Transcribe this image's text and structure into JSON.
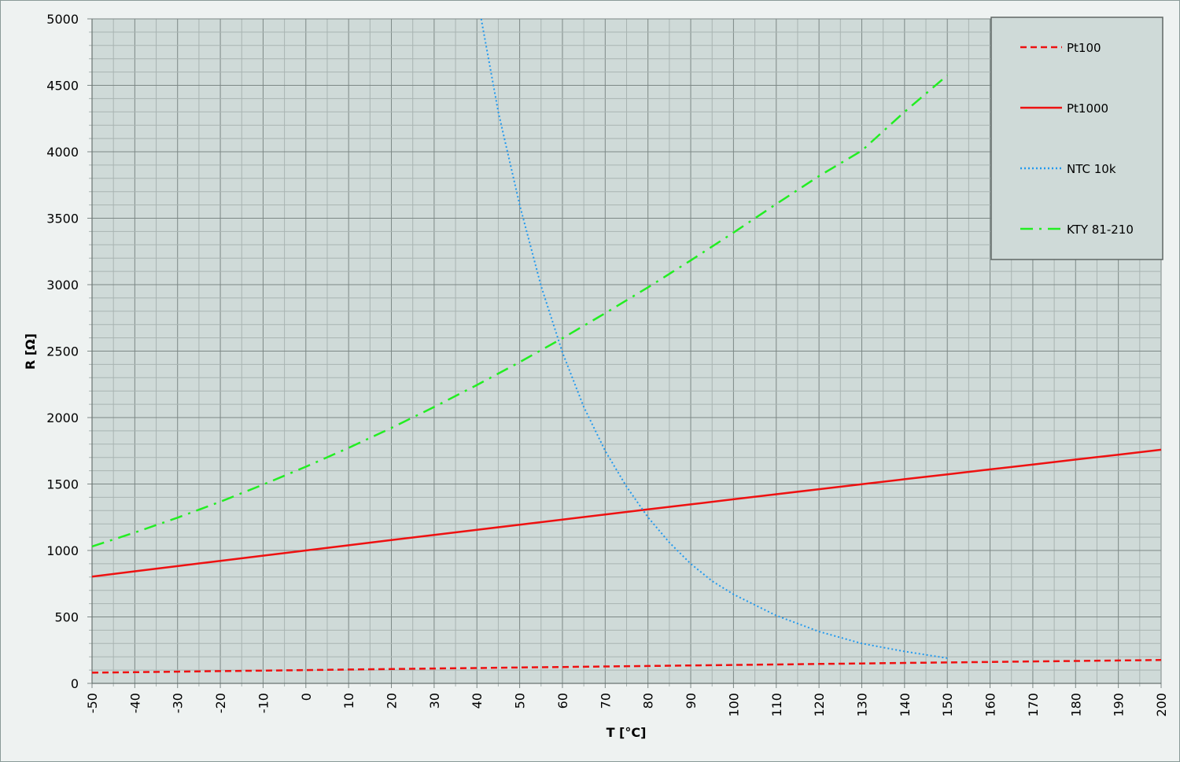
{
  "chart_data": {
    "type": "line",
    "title": "",
    "xlabel": "T [°C]",
    "ylabel": "R [Ω]",
    "xlim": [
      -50,
      200
    ],
    "ylim": [
      0,
      5000
    ],
    "xticks": [
      -50,
      -40,
      -30,
      -20,
      -10,
      0,
      10,
      20,
      30,
      40,
      50,
      60,
      70,
      80,
      90,
      100,
      110,
      120,
      130,
      140,
      150,
      160,
      170,
      180,
      190,
      200
    ],
    "yticks": [
      0,
      500,
      1000,
      1500,
      2000,
      2500,
      3000,
      3500,
      4000,
      4500,
      5000
    ],
    "grid": true,
    "legend_position": "top-right",
    "series": [
      {
        "name": "Pt100",
        "color": "#ee1111",
        "style": "dashed",
        "x": [
          -50,
          -40,
          -30,
          -20,
          -10,
          0,
          10,
          20,
          30,
          40,
          50,
          60,
          70,
          80,
          90,
          100,
          110,
          120,
          130,
          140,
          150,
          160,
          170,
          180,
          190,
          200
        ],
        "y": [
          80.3,
          84.3,
          88.2,
          92.2,
          96.1,
          100,
          103.9,
          107.8,
          111.7,
          115.5,
          119.4,
          123.2,
          127.1,
          130.9,
          134.7,
          138.5,
          142.3,
          146.1,
          149.8,
          153.6,
          157.3,
          161.0,
          164.8,
          168.5,
          172.2,
          175.8
        ]
      },
      {
        "name": "Pt1000",
        "color": "#ee1111",
        "style": "solid",
        "x": [
          -50,
          -40,
          -30,
          -20,
          -10,
          0,
          10,
          20,
          30,
          40,
          50,
          60,
          70,
          80,
          90,
          100,
          110,
          120,
          130,
          140,
          150,
          160,
          170,
          180,
          190,
          200
        ],
        "y": [
          803,
          843,
          882,
          922,
          961,
          1000,
          1039,
          1078,
          1117,
          1155,
          1194,
          1232,
          1271,
          1309,
          1347,
          1385,
          1423,
          1461,
          1498,
          1536,
          1573,
          1610,
          1647,
          1684,
          1721,
          1758
        ]
      },
      {
        "name": "NTC 10k",
        "color": "#2299ee",
        "style": "dotted",
        "x": [
          41,
          45,
          50,
          55,
          60,
          65,
          70,
          75,
          80,
          85,
          90,
          95,
          100,
          110,
          120,
          130,
          140,
          150
        ],
        "y": [
          5000,
          4300,
          3600,
          2990,
          2490,
          2080,
          1750,
          1480,
          1250,
          1060,
          900,
          770,
          670,
          510,
          390,
          300,
          240,
          190
        ]
      },
      {
        "name": "KTY 81-210",
        "color": "#22ee22",
        "style": "dashdot",
        "x": [
          -50,
          -40,
          -30,
          -20,
          -10,
          0,
          10,
          20,
          30,
          40,
          50,
          60,
          70,
          80,
          90,
          100,
          110,
          120,
          130,
          140,
          150
        ],
        "y": [
          1030,
          1135,
          1247,
          1367,
          1495,
          1630,
          1772,
          1922,
          2080,
          2245,
          2417,
          2597,
          2785,
          2980,
          3182,
          3392,
          3607,
          3817,
          4008,
          4300,
          4575
        ]
      }
    ]
  }
}
